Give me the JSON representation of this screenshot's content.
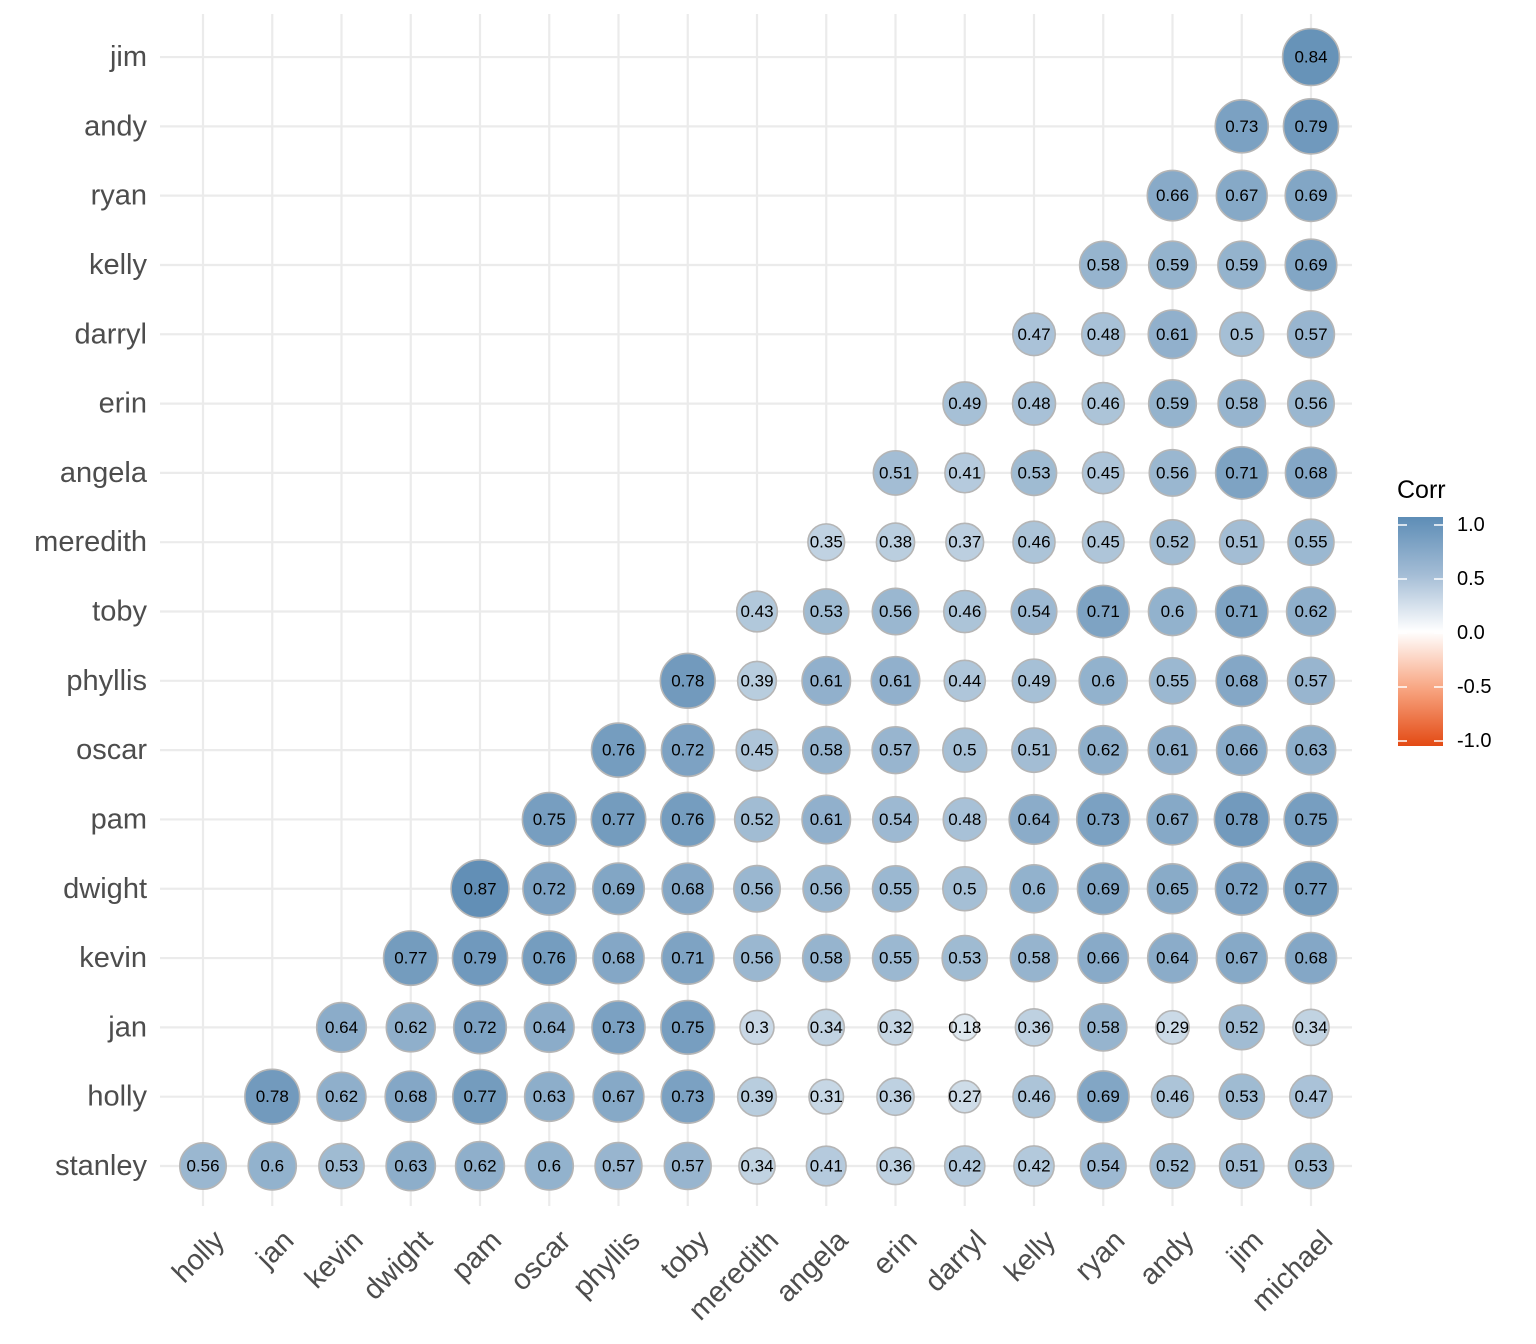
{
  "chart_data": {
    "type": "bubble correlation matrix",
    "x_categories": [
      "holly",
      "jan",
      "kevin",
      "dwight",
      "pam",
      "oscar",
      "phyllis",
      "toby",
      "meredith",
      "angela",
      "erin",
      "darryl",
      "kelly",
      "ryan",
      "andy",
      "jim",
      "michael"
    ],
    "y_categories": [
      "stanley",
      "holly",
      "jan",
      "kevin",
      "dwight",
      "pam",
      "oscar",
      "phyllis",
      "toby",
      "meredith",
      "angela",
      "erin",
      "darryl",
      "kelly",
      "ryan",
      "andy",
      "jim"
    ],
    "rows": [
      {
        "y": "stanley",
        "values": [
          0.56,
          0.6,
          0.53,
          0.63,
          0.62,
          0.6,
          0.57,
          0.57,
          0.34,
          0.41,
          0.36,
          0.42,
          0.42,
          0.54,
          0.52,
          0.51,
          0.53
        ]
      },
      {
        "y": "holly",
        "values": [
          null,
          0.78,
          0.62,
          0.68,
          0.77,
          0.63,
          0.67,
          0.73,
          0.39,
          0.31,
          0.36,
          0.27,
          0.46,
          0.69,
          0.46,
          0.53,
          0.47
        ]
      },
      {
        "y": "jan",
        "values": [
          null,
          null,
          0.64,
          0.62,
          0.72,
          0.64,
          0.73,
          0.75,
          0.3,
          0.34,
          0.32,
          0.18,
          0.36,
          0.58,
          0.29,
          0.52,
          0.34
        ]
      },
      {
        "y": "kevin",
        "values": [
          null,
          null,
          null,
          0.77,
          0.79,
          0.76,
          0.68,
          0.71,
          0.56,
          0.58,
          0.55,
          0.53,
          0.58,
          0.66,
          0.64,
          0.67,
          0.68
        ]
      },
      {
        "y": "dwight",
        "values": [
          null,
          null,
          null,
          null,
          0.87,
          0.72,
          0.69,
          0.68,
          0.56,
          0.56,
          0.55,
          0.5,
          0.6,
          0.69,
          0.65,
          0.72,
          0.77
        ]
      },
      {
        "y": "pam",
        "values": [
          null,
          null,
          null,
          null,
          null,
          0.75,
          0.77,
          0.76,
          0.52,
          0.61,
          0.54,
          0.48,
          0.64,
          0.73,
          0.67,
          0.78,
          0.75
        ]
      },
      {
        "y": "oscar",
        "values": [
          null,
          null,
          null,
          null,
          null,
          null,
          0.76,
          0.72,
          0.45,
          0.58,
          0.57,
          0.5,
          0.51,
          0.62,
          0.61,
          0.66,
          0.63
        ]
      },
      {
        "y": "phyllis",
        "values": [
          null,
          null,
          null,
          null,
          null,
          null,
          null,
          0.78,
          0.39,
          0.61,
          0.61,
          0.44,
          0.49,
          0.6,
          0.55,
          0.68,
          0.57
        ]
      },
      {
        "y": "toby",
        "values": [
          null,
          null,
          null,
          null,
          null,
          null,
          null,
          null,
          0.43,
          0.53,
          0.56,
          0.46,
          0.54,
          0.71,
          0.6,
          0.71,
          0.62
        ]
      },
      {
        "y": "meredith",
        "values": [
          null,
          null,
          null,
          null,
          null,
          null,
          null,
          null,
          null,
          0.35,
          0.38,
          0.37,
          0.46,
          0.45,
          0.52,
          0.51,
          0.55
        ]
      },
      {
        "y": "angela",
        "values": [
          null,
          null,
          null,
          null,
          null,
          null,
          null,
          null,
          null,
          null,
          0.51,
          0.41,
          0.53,
          0.45,
          0.56,
          0.71,
          0.68
        ]
      },
      {
        "y": "erin",
        "values": [
          null,
          null,
          null,
          null,
          null,
          null,
          null,
          null,
          null,
          null,
          null,
          0.49,
          0.48,
          0.46,
          0.59,
          0.58,
          0.56
        ]
      },
      {
        "y": "darryl",
        "values": [
          null,
          null,
          null,
          null,
          null,
          null,
          null,
          null,
          null,
          null,
          null,
          null,
          0.47,
          0.48,
          0.61,
          0.5,
          0.57
        ]
      },
      {
        "y": "kelly",
        "values": [
          null,
          null,
          null,
          null,
          null,
          null,
          null,
          null,
          null,
          null,
          null,
          null,
          null,
          0.58,
          0.59,
          0.59,
          0.69
        ]
      },
      {
        "y": "ryan",
        "values": [
          null,
          null,
          null,
          null,
          null,
          null,
          null,
          null,
          null,
          null,
          null,
          null,
          null,
          null,
          0.66,
          0.67,
          0.69
        ]
      },
      {
        "y": "andy",
        "values": [
          null,
          null,
          null,
          null,
          null,
          null,
          null,
          null,
          null,
          null,
          null,
          null,
          null,
          null,
          null,
          0.73,
          0.79
        ]
      },
      {
        "y": "jim",
        "values": [
          null,
          null,
          null,
          null,
          null,
          null,
          null,
          null,
          null,
          null,
          null,
          null,
          null,
          null,
          null,
          null,
          0.84
        ]
      }
    ],
    "legend": {
      "title": "Corr",
      "ticks": [
        1.0,
        0.5,
        0.0,
        -0.5,
        -1.0
      ],
      "tick_labels": [
        "1.0",
        "0.5",
        "0.0",
        "-0.5",
        "-1.0"
      ],
      "range": [
        -1,
        1
      ],
      "placement": "right"
    },
    "colors": {
      "high": "#4a7eab",
      "mid": "#ffffff",
      "low": "#e34a14",
      "circle_outline": "#b5b5b5",
      "grid": "#ebebeb"
    },
    "grid": true
  }
}
